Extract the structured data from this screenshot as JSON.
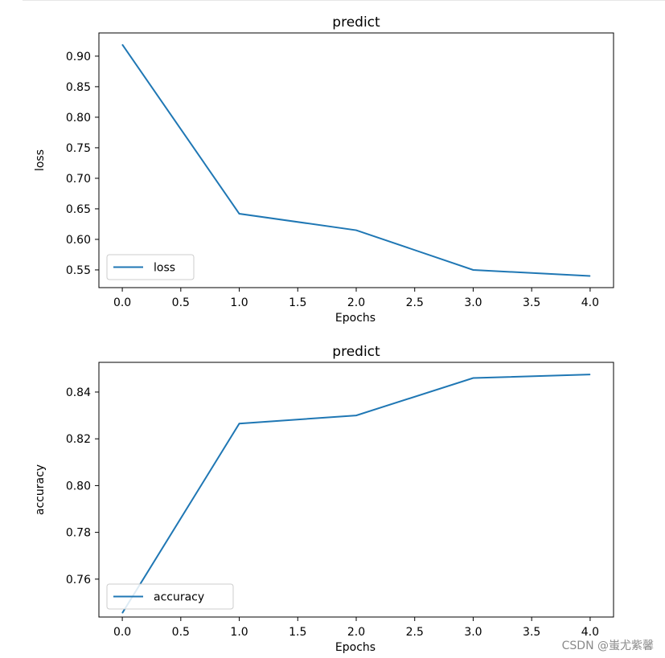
{
  "chart_data": [
    {
      "type": "line",
      "title": "predict",
      "xlabel": "Epochs",
      "ylabel": "loss",
      "x": [
        0,
        1,
        2,
        3,
        4
      ],
      "series": [
        {
          "name": "loss",
          "values": [
            0.919,
            0.642,
            0.615,
            0.55,
            0.54
          ],
          "color": "#1f77b4"
        }
      ],
      "xlim": [
        -0.2,
        4.2
      ],
      "ylim": [
        0.521,
        0.938
      ],
      "xticks": [
        "0.0",
        "0.5",
        "1.0",
        "1.5",
        "2.0",
        "2.5",
        "3.0",
        "3.5",
        "4.0"
      ],
      "yticks": [
        "0.55",
        "0.60",
        "0.65",
        "0.70",
        "0.75",
        "0.80",
        "0.85",
        "0.90"
      ],
      "legend": "lower-left",
      "grid": false
    },
    {
      "type": "line",
      "title": "predict",
      "xlabel": "Epochs",
      "ylabel": "accuracy",
      "x": [
        0,
        1,
        2,
        3,
        4
      ],
      "series": [
        {
          "name": "accuracy",
          "values": [
            0.7455,
            0.8265,
            0.83,
            0.846,
            0.8475
          ],
          "color": "#1f77b4"
        }
      ],
      "xlim": [
        -0.2,
        4.2
      ],
      "ylim": [
        0.7438,
        0.8527
      ],
      "xticks": [
        "0.0",
        "0.5",
        "1.0",
        "1.5",
        "2.0",
        "2.5",
        "3.0",
        "3.5",
        "4.0"
      ],
      "yticks": [
        "0.76",
        "0.78",
        "0.80",
        "0.82",
        "0.84"
      ],
      "legend": "lower-left",
      "grid": false
    }
  ],
  "watermark": "CSDN @蚩尤紫馨"
}
